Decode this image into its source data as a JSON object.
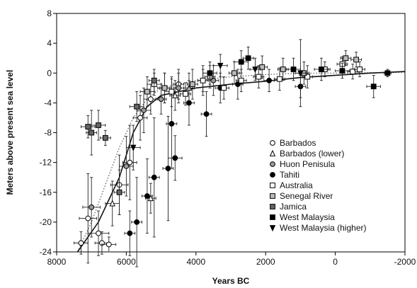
{
  "chart_data": {
    "type": "scatter",
    "title": "",
    "xlabel": "Years BC",
    "ylabel": "Meters above present sea level",
    "xlim": [
      8000,
      -2000
    ],
    "ylim": [
      -24,
      8
    ],
    "x_ticks": [
      8000,
      6000,
      4000,
      2000,
      0,
      -2000
    ],
    "y_ticks": [
      8,
      4,
      0,
      -4,
      -8,
      -12,
      -16,
      -20,
      -24
    ],
    "x_tick_labels": [
      "8000",
      "6000",
      "4000",
      "2000",
      "0",
      "-2000"
    ],
    "y_tick_labels": [
      "8",
      "4",
      "0",
      "-4",
      "-8",
      "-12",
      "-16",
      "-20",
      "-24"
    ],
    "grid": false,
    "legend_position": "bottom-right",
    "series": [
      {
        "name": "Barbados",
        "marker": "circle-open",
        "points": [
          {
            "x": 7300,
            "y": -22.8,
            "xerr": 200,
            "yerr": 1.5
          },
          {
            "x": 7100,
            "y": -19.5,
            "xerr": 250,
            "yerr": 6
          },
          {
            "x": 6800,
            "y": -21.5,
            "xerr": 300,
            "yerr": 3
          },
          {
            "x": 6700,
            "y": -22.8,
            "xerr": 200,
            "yerr": 1.5
          },
          {
            "x": 6500,
            "y": -23.0,
            "xerr": 200,
            "yerr": 1
          },
          {
            "x": 6200,
            "y": -15.0,
            "xerr": 250,
            "yerr": 4
          },
          {
            "x": 5900,
            "y": -12.0,
            "xerr": 200,
            "yerr": 5
          },
          {
            "x": 5600,
            "y": -6.0,
            "xerr": 200,
            "yerr": 3
          },
          {
            "x": 5300,
            "y": -3.5,
            "xerr": 200,
            "yerr": 2
          },
          {
            "x": 4900,
            "y": -2.0,
            "xerr": 150,
            "yerr": 2
          },
          {
            "x": 4500,
            "y": -1.5,
            "xerr": 150,
            "yerr": 2
          },
          {
            "x": 3800,
            "y": -1.0,
            "xerr": 150,
            "yerr": 2
          }
        ]
      },
      {
        "name": "Barbados (lower)",
        "marker": "triangle-open",
        "points": [
          {
            "x": 6400,
            "y": -17.5,
            "xerr": 200,
            "yerr": 3
          },
          {
            "x": 5300,
            "y": -16.8,
            "xerr": 150,
            "yerr": 2
          },
          {
            "x": 4600,
            "y": -3.0,
            "xerr": 150,
            "yerr": 2
          },
          {
            "x": 4200,
            "y": -2.0,
            "xerr": 150,
            "yerr": 2
          }
        ]
      },
      {
        "name": "Huon Penisula",
        "marker": "circle-gray",
        "points": [
          {
            "x": 7000,
            "y": -18.0,
            "xerr": 250,
            "yerr": 4
          },
          {
            "x": 6000,
            "y": -12.5,
            "xerr": 200,
            "yerr": 4
          },
          {
            "x": 5500,
            "y": -5.0,
            "xerr": 200,
            "yerr": 3
          },
          {
            "x": 5000,
            "y": -3.5,
            "xerr": 150,
            "yerr": 2
          },
          {
            "x": 4500,
            "y": -2.0,
            "xerr": 150,
            "yerr": 2
          },
          {
            "x": 3500,
            "y": -1.0,
            "xerr": 150,
            "yerr": 2
          }
        ]
      },
      {
        "name": "Tahiti",
        "marker": "circle-filled",
        "points": [
          {
            "x": 5900,
            "y": -21.5,
            "xerr": 150,
            "yerr": 3
          },
          {
            "x": 5700,
            "y": -20.0,
            "xerr": 150,
            "yerr": 6
          },
          {
            "x": 5400,
            "y": -16.5,
            "xerr": 150,
            "yerr": 5
          },
          {
            "x": 5200,
            "y": -14.0,
            "xerr": 150,
            "yerr": 8
          },
          {
            "x": 4800,
            "y": -12.8,
            "xerr": 150,
            "yerr": 7
          },
          {
            "x": 4600,
            "y": -11.4,
            "xerr": 200,
            "yerr": 3
          },
          {
            "x": 4700,
            "y": -6.8,
            "xerr": 150,
            "yerr": 6
          },
          {
            "x": 4200,
            "y": -4.0,
            "xerr": 150,
            "yerr": 3
          },
          {
            "x": 3700,
            "y": -5.5,
            "xerr": 150,
            "yerr": 3
          },
          {
            "x": 3300,
            "y": -2.0,
            "xerr": 150,
            "yerr": 2
          },
          {
            "x": 2800,
            "y": -1.5,
            "xerr": 150,
            "yerr": 2
          },
          {
            "x": 1900,
            "y": -1.0,
            "xerr": 150,
            "yerr": 1.5
          },
          {
            "x": 1000,
            "y": -1.8,
            "xerr": 150,
            "yerr": 1.5
          }
        ]
      },
      {
        "name": "Australia",
        "marker": "square-open",
        "points": [
          {
            "x": 5200,
            "y": -1.5,
            "xerr": 200,
            "yerr": 1.5
          },
          {
            "x": 4700,
            "y": -2.5,
            "xerr": 200,
            "yerr": 2
          },
          {
            "x": 4300,
            "y": -2.8,
            "xerr": 150,
            "yerr": 1.5
          },
          {
            "x": 3800,
            "y": -1.0,
            "xerr": 150,
            "yerr": 1.5
          },
          {
            "x": 3200,
            "y": -2.0,
            "xerr": 150,
            "yerr": 1.5
          },
          {
            "x": 2700,
            "y": -1.0,
            "xerr": 150,
            "yerr": 1.5
          },
          {
            "x": 2200,
            "y": -0.5,
            "xerr": 150,
            "yerr": 1.5
          },
          {
            "x": 1600,
            "y": -0.8,
            "xerr": 150,
            "yerr": 1.5
          },
          {
            "x": 800,
            "y": -0.5,
            "xerr": 150,
            "yerr": 1.5
          },
          {
            "x": 300,
            "y": 0.5,
            "xerr": 150,
            "yerr": 1
          },
          {
            "x": -200,
            "y": 1.2,
            "xerr": 150,
            "yerr": 1
          },
          {
            "x": -500,
            "y": 0.2,
            "xerr": 150,
            "yerr": 1
          },
          {
            "x": -700,
            "y": 0.5,
            "xerr": 150,
            "yerr": 1
          }
        ]
      },
      {
        "name": "Senegal River",
        "marker": "square-gray",
        "points": [
          {
            "x": 5400,
            "y": -2.5,
            "xerr": 200,
            "yerr": 2
          },
          {
            "x": 4900,
            "y": -2.0,
            "xerr": 200,
            "yerr": 2
          },
          {
            "x": 4100,
            "y": -1.5,
            "xerr": 150,
            "yerr": 2
          },
          {
            "x": 3600,
            "y": -0.5,
            "xerr": 150,
            "yerr": 1.5
          },
          {
            "x": 2900,
            "y": 0.0,
            "xerr": 150,
            "yerr": 1.5
          },
          {
            "x": 2100,
            "y": 0.8,
            "xerr": 150,
            "yerr": 1.5
          },
          {
            "x": 1500,
            "y": 0.5,
            "xerr": 150,
            "yerr": 1.5
          },
          {
            "x": 900,
            "y": 0.0,
            "xerr": 150,
            "yerr": 1.5
          },
          {
            "x": -300,
            "y": 2.0,
            "xerr": 150,
            "yerr": 1
          },
          {
            "x": -600,
            "y": 1.8,
            "xerr": 150,
            "yerr": 1
          }
        ]
      },
      {
        "name": "Jamica",
        "marker": "square-darkgray",
        "points": [
          {
            "x": 7100,
            "y": -7.2,
            "xerr": 200,
            "yerr": 1.5
          },
          {
            "x": 7000,
            "y": -8.0,
            "xerr": 150,
            "yerr": 3
          },
          {
            "x": 6800,
            "y": -7.0,
            "xerr": 200,
            "yerr": 2
          },
          {
            "x": 6600,
            "y": -8.7,
            "xerr": 150,
            "yerr": 1
          },
          {
            "x": 6200,
            "y": -16.0,
            "xerr": 150,
            "yerr": 3
          },
          {
            "x": 5700,
            "y": -4.5,
            "xerr": 200,
            "yerr": 2
          },
          {
            "x": 5200,
            "y": -1.0,
            "xerr": 150,
            "yerr": 1.5
          }
        ]
      },
      {
        "name": "West Malaysia",
        "marker": "square-filled",
        "points": [
          {
            "x": 3600,
            "y": 0.0,
            "xerr": 200,
            "yerr": 1.5
          },
          {
            "x": 2700,
            "y": 1.5,
            "xerr": 200,
            "yerr": 1.5
          },
          {
            "x": 2500,
            "y": 2.0,
            "xerr": 150,
            "yerr": 1.5
          },
          {
            "x": 1200,
            "y": 0.5,
            "xerr": 200,
            "yerr": 1.5
          },
          {
            "x": 400,
            "y": 0.5,
            "xerr": 200,
            "yerr": 1.5
          },
          {
            "x": -200,
            "y": 0.3,
            "xerr": 200,
            "yerr": 1
          },
          {
            "x": -1100,
            "y": -1.8,
            "xerr": 200,
            "yerr": 1.5
          },
          {
            "x": -1500,
            "y": 0.0,
            "xerr": 100,
            "yerr": 0.5
          }
        ]
      },
      {
        "name": "West Malaysia (higher)",
        "marker": "triangle-down-filled",
        "points": [
          {
            "x": 5800,
            "y": -10.0,
            "xerr": 200,
            "yerr": 3
          },
          {
            "x": 3300,
            "y": 1.0,
            "xerr": 200,
            "yerr": 1.5
          },
          {
            "x": 2300,
            "y": 0.5,
            "xerr": 150,
            "yerr": 1.5
          },
          {
            "x": 1000,
            "y": 0.0,
            "xerr": 150,
            "yerr": 4.5
          }
        ]
      }
    ],
    "curves": {
      "solid": [
        [
          7400,
          -24
        ],
        [
          6800,
          -20
        ],
        [
          6200,
          -14
        ],
        [
          5800,
          -8
        ],
        [
          5400,
          -4.5
        ],
        [
          5000,
          -3
        ],
        [
          4000,
          -2
        ],
        [
          3000,
          -1.5
        ],
        [
          2000,
          -1.1
        ],
        [
          1000,
          -0.6
        ],
        [
          0,
          -0.3
        ],
        [
          -1000,
          0
        ],
        [
          -2000,
          0.2
        ]
      ],
      "dotted": [
        [
          7400,
          -24
        ],
        [
          7000,
          -20
        ],
        [
          6600,
          -15
        ],
        [
          6200,
          -10
        ],
        [
          5800,
          -6
        ],
        [
          5400,
          -3.5
        ],
        [
          5000,
          -2
        ],
        [
          4000,
          -1
        ],
        [
          3000,
          -0.5
        ],
        [
          2000,
          -0.2
        ],
        [
          1000,
          0
        ],
        [
          0,
          0
        ],
        [
          -2000,
          0.1
        ]
      ]
    }
  }
}
